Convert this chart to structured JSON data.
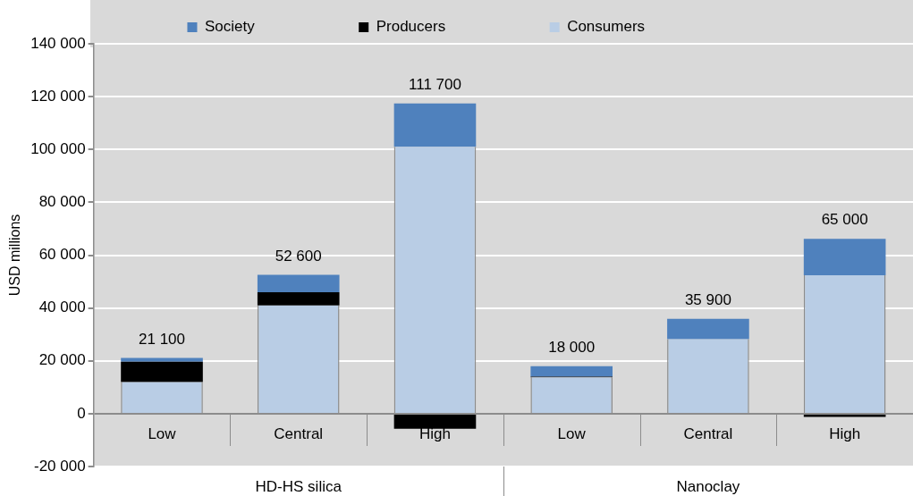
{
  "chart_data": {
    "type": "bar",
    "stacked": true,
    "ylabel": "USD millions",
    "categories": [
      "Low",
      "Central",
      "High",
      "Low",
      "Central",
      "High"
    ],
    "series": [
      {
        "name": "Consumers",
        "color": "#b9cde5",
        "values": [
          12000,
          41000,
          101000,
          13700,
          28200,
          52400
        ]
      },
      {
        "name": "Producers",
        "color": "#000000",
        "values": [
          7700,
          5000,
          -5700,
          300,
          0,
          -1200
        ]
      },
      {
        "name": "Society",
        "color": "#4f81bd",
        "values": [
          1400,
          6600,
          16400,
          4000,
          7700,
          13800
        ]
      }
    ],
    "totals": [
      "21 100",
      "52 600",
      "111 700",
      "18 000",
      "35 900",
      "65 000"
    ],
    "annotations": [
      "HD-HS silica",
      "Nanoclay"
    ],
    "ylim": [
      -20000,
      140000
    ],
    "yticks": [
      {
        "value": -20000,
        "label": "-20 000"
      },
      {
        "value": 0,
        "label": "0"
      },
      {
        "value": 20000,
        "label": "20 000"
      },
      {
        "value": 40000,
        "label": "40 000"
      },
      {
        "value": 60000,
        "label": "60 000"
      },
      {
        "value": 80000,
        "label": "80 000"
      },
      {
        "value": 100000,
        "label": "100 000"
      },
      {
        "value": 120000,
        "label": "120 000"
      },
      {
        "value": 140000,
        "label": "140 000"
      }
    ],
    "grid": "y",
    "legend": "top"
  }
}
